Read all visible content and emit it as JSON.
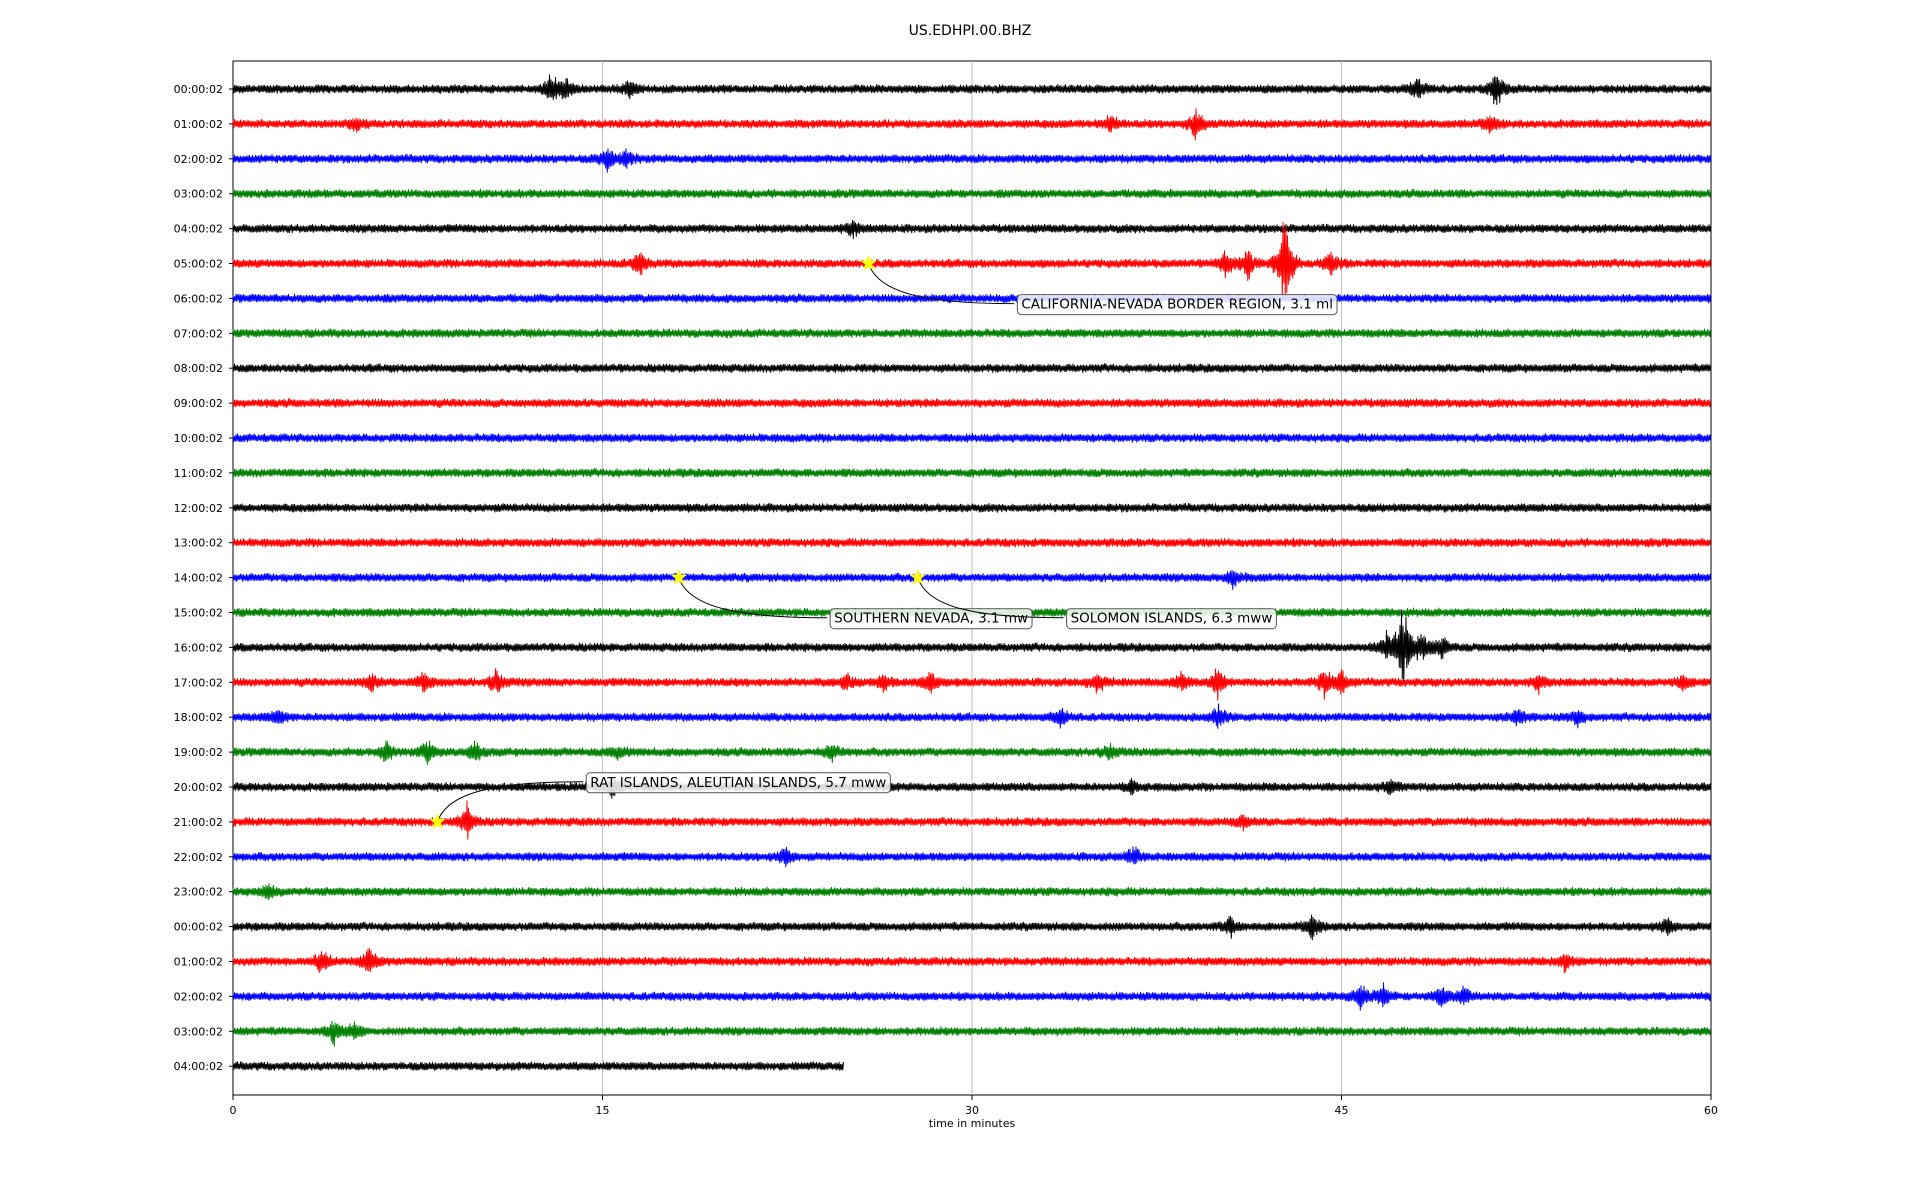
{
  "chart_data": {
    "type": "line",
    "title": "US.EDHPI.00.BHZ",
    "xlabel": "time in minutes",
    "xlim": [
      0,
      60
    ],
    "x_ticks": [
      "0",
      "15",
      "30",
      "45",
      "60"
    ],
    "x_tick_values": [
      0,
      15,
      30,
      45,
      60
    ],
    "grid": "vertical at 15-minute ticks",
    "trace_colors": [
      "#000000",
      "#ff0000",
      "#0000ff",
      "#008000"
    ],
    "marker_color": "#ffff00",
    "row_labels": [
      "00:00:02",
      "01:00:02",
      "02:00:02",
      "03:00:02",
      "04:00:02",
      "05:00:02",
      "06:00:02",
      "07:00:02",
      "08:00:02",
      "09:00:02",
      "10:00:02",
      "11:00:02",
      "12:00:02",
      "13:00:02",
      "14:00:02",
      "15:00:02",
      "16:00:02",
      "17:00:02",
      "18:00:02",
      "19:00:02",
      "20:00:02",
      "21:00:02",
      "22:00:02",
      "23:00:02",
      "00:00:02",
      "01:00:02",
      "02:00:02",
      "03:00:02",
      "04:00:02"
    ],
    "last_row_end_minute": 24.8,
    "bursts": [
      {
        "row": 0,
        "minute": 12.9,
        "amp": 1.2
      },
      {
        "row": 0,
        "minute": 13.5,
        "amp": 1.0
      },
      {
        "row": 0,
        "minute": 16.1,
        "amp": 0.8
      },
      {
        "row": 0,
        "minute": 48.1,
        "amp": 0.9
      },
      {
        "row": 0,
        "minute": 51.3,
        "amp": 1.6
      },
      {
        "row": 1,
        "minute": 5.0,
        "amp": 0.5
      },
      {
        "row": 1,
        "minute": 35.6,
        "amp": 0.9
      },
      {
        "row": 1,
        "minute": 39.1,
        "amp": 1.5
      },
      {
        "row": 1,
        "minute": 51.0,
        "amp": 0.7
      },
      {
        "row": 2,
        "minute": 15.2,
        "amp": 0.9
      },
      {
        "row": 2,
        "minute": 16.0,
        "amp": 0.8
      },
      {
        "row": 4,
        "minute": 25.2,
        "amp": 0.6
      },
      {
        "row": 5,
        "minute": 16.5,
        "amp": 1.1
      },
      {
        "row": 5,
        "minute": 40.3,
        "amp": 1.0
      },
      {
        "row": 5,
        "minute": 41.2,
        "amp": 1.4
      },
      {
        "row": 5,
        "minute": 42.7,
        "amp": 4.5
      },
      {
        "row": 5,
        "minute": 44.6,
        "amp": 1.1
      },
      {
        "row": 14,
        "minute": 40.6,
        "amp": 0.7
      },
      {
        "row": 16,
        "minute": 46.8,
        "amp": 1.2
      },
      {
        "row": 16,
        "minute": 47.5,
        "amp": 4.0
      },
      {
        "row": 16,
        "minute": 48.3,
        "amp": 1.4
      },
      {
        "row": 16,
        "minute": 49.1,
        "amp": 0.9
      },
      {
        "row": 17,
        "minute": 5.6,
        "amp": 0.8
      },
      {
        "row": 17,
        "minute": 7.8,
        "amp": 1.0
      },
      {
        "row": 17,
        "minute": 10.7,
        "amp": 1.0
      },
      {
        "row": 17,
        "minute": 24.9,
        "amp": 0.7
      },
      {
        "row": 17,
        "minute": 26.4,
        "amp": 0.8
      },
      {
        "row": 17,
        "minute": 28.3,
        "amp": 1.0
      },
      {
        "row": 17,
        "minute": 35.1,
        "amp": 0.9
      },
      {
        "row": 17,
        "minute": 38.5,
        "amp": 0.8
      },
      {
        "row": 17,
        "minute": 40.0,
        "amp": 1.2
      },
      {
        "row": 17,
        "minute": 44.3,
        "amp": 1.1
      },
      {
        "row": 17,
        "minute": 45.0,
        "amp": 1.0
      },
      {
        "row": 17,
        "minute": 53.0,
        "amp": 0.7
      },
      {
        "row": 17,
        "minute": 58.9,
        "amp": 0.6
      },
      {
        "row": 18,
        "minute": 1.8,
        "amp": 0.7
      },
      {
        "row": 18,
        "minute": 33.6,
        "amp": 0.8
      },
      {
        "row": 18,
        "minute": 40.0,
        "amp": 0.9
      },
      {
        "row": 18,
        "minute": 52.2,
        "amp": 0.7
      },
      {
        "row": 18,
        "minute": 54.6,
        "amp": 0.6
      },
      {
        "row": 19,
        "minute": 6.2,
        "amp": 0.8
      },
      {
        "row": 19,
        "minute": 7.9,
        "amp": 1.1
      },
      {
        "row": 19,
        "minute": 9.8,
        "amp": 0.9
      },
      {
        "row": 19,
        "minute": 15.6,
        "amp": 0.6
      },
      {
        "row": 19,
        "minute": 24.3,
        "amp": 0.7
      },
      {
        "row": 19,
        "minute": 35.6,
        "amp": 0.6
      },
      {
        "row": 20,
        "minute": 15.4,
        "amp": 0.9
      },
      {
        "row": 20,
        "minute": 36.5,
        "amp": 0.6
      },
      {
        "row": 20,
        "minute": 47.0,
        "amp": 0.6
      },
      {
        "row": 21,
        "minute": 9.5,
        "amp": 1.6
      },
      {
        "row": 21,
        "minute": 41.0,
        "amp": 0.6
      },
      {
        "row": 22,
        "minute": 22.4,
        "amp": 0.9
      },
      {
        "row": 22,
        "minute": 36.6,
        "amp": 0.9
      },
      {
        "row": 23,
        "minute": 1.4,
        "amp": 0.6
      },
      {
        "row": 24,
        "minute": 40.5,
        "amp": 0.8
      },
      {
        "row": 24,
        "minute": 43.8,
        "amp": 1.3
      },
      {
        "row": 24,
        "minute": 58.2,
        "amp": 0.8
      },
      {
        "row": 25,
        "minute": 3.6,
        "amp": 1.0
      },
      {
        "row": 25,
        "minute": 5.5,
        "amp": 1.2
      },
      {
        "row": 25,
        "minute": 54.1,
        "amp": 0.9
      },
      {
        "row": 26,
        "minute": 45.8,
        "amp": 1.2
      },
      {
        "row": 26,
        "minute": 46.7,
        "amp": 1.0
      },
      {
        "row": 26,
        "minute": 49.1,
        "amp": 0.8
      },
      {
        "row": 26,
        "minute": 50.0,
        "amp": 0.8
      },
      {
        "row": 27,
        "minute": 4.1,
        "amp": 0.9
      },
      {
        "row": 27,
        "minute": 4.9,
        "amp": 0.6
      }
    ],
    "events": [
      {
        "label": "CALIFORNIA-NEVADA BORDER REGION, 3.1 ml",
        "row": 5,
        "minute": 25.8,
        "label_row": 6.15,
        "label_minute": 31.8
      },
      {
        "label": "SOUTHERN NEVADA, 3.1 mw",
        "row": 14,
        "minute": 18.1,
        "label_row": 15.15,
        "label_minute": 24.2
      },
      {
        "label": "SOLOMON ISLANDS, 6.3 mww",
        "row": 14,
        "minute": 27.8,
        "label_row": 15.15,
        "label_minute": 33.8
      },
      {
        "label": "RAT ISLANDS, ALEUTIAN ISLANDS, 5.7 mww",
        "row": 21,
        "minute": 8.3,
        "label_row": 19.85,
        "label_minute": 14.3
      }
    ]
  }
}
